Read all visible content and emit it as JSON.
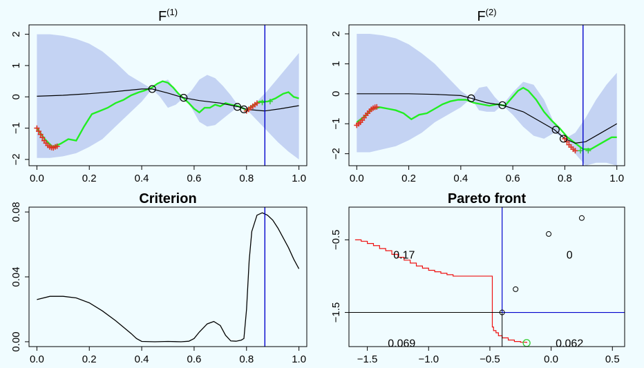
{
  "chart_data": [
    {
      "type": "line",
      "panel": "F1",
      "title_base": "F",
      "title_sup": "(1)",
      "xlim": [
        -0.03,
        1.03
      ],
      "ylim": [
        -2.2,
        2.3
      ],
      "xticks": [
        "0.0",
        "0.2",
        "0.4",
        "0.6",
        "0.8",
        "1.0"
      ],
      "xtick_values": [
        0,
        0.2,
        0.4,
        0.6,
        0.8,
        1.0
      ],
      "yticks": [
        "−2",
        "−1",
        "0",
        "1",
        "2"
      ],
      "ytick_values": [
        -2,
        -1,
        0,
        1,
        2
      ],
      "vline_x": 0.87,
      "band": {
        "x": [
          0.0,
          0.05,
          0.1,
          0.15,
          0.2,
          0.25,
          0.3,
          0.35,
          0.4,
          0.44,
          0.47,
          0.5,
          0.53,
          0.56,
          0.59,
          0.62,
          0.65,
          0.68,
          0.71,
          0.74,
          0.77,
          0.8,
          0.84,
          0.88,
          0.92,
          0.96,
          1.0
        ],
        "upper": [
          2.0,
          2.0,
          1.95,
          1.85,
          1.7,
          1.45,
          1.1,
          0.7,
          0.45,
          0.25,
          0.45,
          0.55,
          0.2,
          -0.03,
          0.2,
          0.55,
          0.7,
          0.6,
          0.35,
          0.05,
          -0.3,
          -0.35,
          -0.15,
          0.2,
          0.6,
          1.0,
          1.4
        ],
        "lower": [
          -1.95,
          -1.95,
          -1.9,
          -1.8,
          -1.6,
          -1.35,
          -0.95,
          -0.55,
          -0.15,
          0.25,
          0.0,
          -0.35,
          -0.25,
          -0.03,
          -0.35,
          -0.8,
          -0.95,
          -0.9,
          -0.7,
          -0.5,
          -0.3,
          -0.4,
          -0.75,
          -1.1,
          -1.45,
          -1.75,
          -2.0
        ]
      },
      "mean_line": {
        "x": [
          0.0,
          0.1,
          0.2,
          0.3,
          0.4,
          0.44,
          0.5,
          0.56,
          0.62,
          0.7,
          0.77,
          0.8,
          0.87,
          0.93,
          1.0
        ],
        "y": [
          0.02,
          0.05,
          0.1,
          0.17,
          0.25,
          0.25,
          0.12,
          -0.03,
          -0.12,
          -0.2,
          -0.32,
          -0.4,
          -0.45,
          -0.38,
          -0.28
        ]
      },
      "true_function": {
        "x": [
          0.0,
          0.03,
          0.06,
          0.09,
          0.12,
          0.15,
          0.18,
          0.21,
          0.24,
          0.27,
          0.3,
          0.33,
          0.36,
          0.39,
          0.41,
          0.44,
          0.46,
          0.48,
          0.5,
          0.52,
          0.54,
          0.56,
          0.58,
          0.6,
          0.62,
          0.64,
          0.66,
          0.68,
          0.7,
          0.72,
          0.74,
          0.77,
          0.8,
          0.82,
          0.85,
          0.88,
          0.91,
          0.94,
          0.96,
          0.98,
          1.0
        ],
        "y": [
          -1.0,
          -1.35,
          -1.6,
          -1.5,
          -1.35,
          -1.4,
          -0.95,
          -0.55,
          -0.45,
          -0.35,
          -0.2,
          -0.1,
          0.05,
          0.15,
          0.2,
          0.3,
          0.42,
          0.5,
          0.45,
          0.3,
          0.1,
          -0.05,
          -0.2,
          -0.38,
          -0.5,
          -0.35,
          -0.35,
          -0.25,
          -0.3,
          -0.2,
          -0.25,
          -0.3,
          -0.42,
          -0.3,
          -0.15,
          -0.15,
          -0.05,
          0.1,
          0.15,
          0.0,
          -0.05
        ]
      },
      "observations": {
        "x": [
          0.44,
          0.56,
          0.765,
          0.79
        ],
        "y": [
          0.25,
          -0.03,
          -0.32,
          -0.4
        ]
      },
      "red_crosses": {
        "x": [
          0.0,
          0.007,
          0.014,
          0.021,
          0.028,
          0.035,
          0.042,
          0.049,
          0.056,
          0.063,
          0.07,
          0.077,
          0.8,
          0.808,
          0.816,
          0.824,
          0.832,
          0.84
        ],
        "y": [
          -1.0,
          -1.1,
          -1.2,
          -1.3,
          -1.4,
          -1.48,
          -1.55,
          -1.6,
          -1.62,
          -1.63,
          -1.6,
          -1.58,
          -0.45,
          -0.4,
          -0.35,
          -0.3,
          -0.25,
          -0.2
        ]
      },
      "green_crosses": {
        "x": [
          0.86,
          0.89
        ],
        "y": [
          -0.18,
          -0.15
        ]
      }
    },
    {
      "type": "line",
      "panel": "F2",
      "title_base": "F",
      "title_sup": "(2)",
      "xlim": [
        -0.03,
        1.03
      ],
      "ylim": [
        -2.4,
        2.3
      ],
      "xticks": [
        "0.0",
        "0.2",
        "0.4",
        "0.6",
        "0.8",
        "1.0"
      ],
      "xtick_values": [
        0,
        0.2,
        0.4,
        0.6,
        0.8,
        1.0
      ],
      "yticks": [
        "−2",
        "−1",
        "0",
        "1",
        "2"
      ],
      "ytick_values": [
        -2,
        -1,
        0,
        1,
        2
      ],
      "vline_x": 0.87,
      "band": {
        "x": [
          0.0,
          0.05,
          0.1,
          0.15,
          0.2,
          0.25,
          0.3,
          0.35,
          0.4,
          0.44,
          0.47,
          0.5,
          0.53,
          0.56,
          0.6,
          0.64,
          0.68,
          0.72,
          0.76,
          0.8,
          0.84,
          0.88,
          0.92,
          0.96,
          1.0
        ],
        "upper": [
          2.0,
          2.0,
          1.95,
          1.85,
          1.65,
          1.35,
          1.0,
          0.55,
          0.1,
          -0.15,
          0.2,
          0.25,
          -0.1,
          -0.38,
          0.05,
          0.4,
          0.3,
          -0.2,
          -1.0,
          -1.5,
          -1.3,
          -0.8,
          -0.2,
          0.3,
          0.7
        ],
        "lower": [
          -1.95,
          -1.95,
          -1.85,
          -1.75,
          -1.55,
          -1.3,
          -0.95,
          -0.7,
          -0.45,
          -0.15,
          -0.55,
          -0.6,
          -0.6,
          -0.38,
          -0.7,
          -1.1,
          -1.4,
          -1.5,
          -1.3,
          -1.5,
          -2.0,
          -2.4,
          -2.3,
          -2.3,
          -2.4
        ]
      },
      "mean_line": {
        "x": [
          0.0,
          0.1,
          0.2,
          0.3,
          0.4,
          0.44,
          0.5,
          0.56,
          0.64,
          0.7,
          0.76,
          0.8,
          0.84,
          0.88,
          0.94,
          1.0
        ],
        "y": [
          0.0,
          0.0,
          0.0,
          -0.02,
          -0.06,
          -0.15,
          -0.3,
          -0.38,
          -0.6,
          -0.9,
          -1.2,
          -1.5,
          -1.65,
          -1.6,
          -1.3,
          -1.0
        ]
      },
      "true_function": {
        "x": [
          0.0,
          0.03,
          0.06,
          0.09,
          0.12,
          0.15,
          0.18,
          0.21,
          0.24,
          0.27,
          0.3,
          0.33,
          0.36,
          0.39,
          0.42,
          0.45,
          0.48,
          0.51,
          0.54,
          0.57,
          0.6,
          0.62,
          0.64,
          0.66,
          0.69,
          0.72,
          0.75,
          0.78,
          0.81,
          0.84,
          0.87,
          0.9,
          0.93,
          0.96,
          0.98,
          1.0
        ],
        "y": [
          -0.95,
          -0.75,
          -0.5,
          -0.45,
          -0.5,
          -0.55,
          -0.65,
          -0.85,
          -0.7,
          -0.65,
          -0.5,
          -0.35,
          -0.25,
          -0.2,
          -0.2,
          -0.3,
          -0.35,
          -0.4,
          -0.35,
          -0.4,
          -0.1,
          0.1,
          0.2,
          0.1,
          -0.2,
          -0.6,
          -0.9,
          -1.15,
          -1.45,
          -1.65,
          -1.85,
          -1.85,
          -1.7,
          -1.55,
          -1.45,
          -1.45
        ]
      },
      "observations": {
        "x": [
          0.44,
          0.56,
          0.765,
          0.795
        ],
        "y": [
          -0.15,
          -0.38,
          -1.2,
          -1.5
        ]
      },
      "red_crosses": {
        "x": [
          0.0,
          0.007,
          0.014,
          0.021,
          0.028,
          0.035,
          0.042,
          0.049,
          0.056,
          0.063,
          0.07,
          0.077,
          0.8,
          0.808,
          0.816,
          0.824,
          0.832,
          0.84
        ],
        "y": [
          -1.05,
          -1.0,
          -0.95,
          -0.88,
          -0.8,
          -0.72,
          -0.65,
          -0.58,
          -0.52,
          -0.48,
          -0.45,
          -0.44,
          -1.5,
          -1.6,
          -1.7,
          -1.78,
          -1.85,
          -1.9
        ]
      },
      "green_crosses": {
        "x": [
          0.86,
          0.89
        ],
        "y": [
          -1.9,
          -1.9
        ]
      }
    },
    {
      "type": "line",
      "panel": "criterion",
      "title": "Criterion",
      "xlim": [
        -0.03,
        1.03
      ],
      "ylim": [
        -0.003,
        0.083
      ],
      "xticks": [
        "0.0",
        "0.2",
        "0.4",
        "0.6",
        "0.8",
        "1.0"
      ],
      "xtick_values": [
        0,
        0.2,
        0.4,
        0.6,
        0.8,
        1.0
      ],
      "yticks": [
        "0.00",
        "0.04",
        "0.08"
      ],
      "ytick_values": [
        0.0,
        0.04,
        0.08
      ],
      "vline_x": 0.87,
      "line": {
        "x": [
          0.0,
          0.05,
          0.1,
          0.15,
          0.2,
          0.25,
          0.3,
          0.33,
          0.36,
          0.38,
          0.4,
          0.45,
          0.5,
          0.55,
          0.58,
          0.6,
          0.62,
          0.65,
          0.675,
          0.7,
          0.72,
          0.74,
          0.76,
          0.78,
          0.79,
          0.8,
          0.81,
          0.82,
          0.84,
          0.86,
          0.88,
          0.9,
          0.92,
          0.94,
          0.96,
          0.98,
          1.0
        ],
        "y": [
          0.026,
          0.028,
          0.028,
          0.027,
          0.024,
          0.019,
          0.013,
          0.009,
          0.005,
          0.002,
          0.0002,
          0.0,
          0.0002,
          0.0,
          0.0003,
          0.002,
          0.006,
          0.011,
          0.0125,
          0.01,
          0.004,
          0.0005,
          0.0003,
          0.001,
          0.002,
          0.02,
          0.05,
          0.068,
          0.078,
          0.0795,
          0.078,
          0.075,
          0.07,
          0.064,
          0.058,
          0.051,
          0.045
        ]
      }
    },
    {
      "type": "scatter",
      "panel": "pareto",
      "title": "Pareto front",
      "xlim": [
        -1.65,
        0.6
      ],
      "ylim": [
        -1.97,
        -0.05
      ],
      "xticks": [
        "−1.5",
        "−1.0",
        "−0.5",
        "0.0",
        "0.5"
      ],
      "xtick_values": [
        -1.5,
        -1.0,
        -0.5,
        0.0,
        0.5
      ],
      "yticks": [
        "−1.5",
        "−0.5"
      ],
      "ytick_values": [
        -1.5,
        -0.5
      ],
      "vline_x": -0.4,
      "hline_y": -1.5,
      "front": {
        "x": [
          -1.6,
          -1.55,
          -1.5,
          -1.45,
          -1.4,
          -1.35,
          -1.3,
          -1.25,
          -1.2,
          -1.15,
          -1.1,
          -1.05,
          -1.0,
          -0.95,
          -0.9,
          -0.85,
          -0.8,
          -0.7,
          -0.6,
          -0.5,
          -0.48,
          -0.47,
          -0.45,
          -0.43,
          -0.4,
          -0.35,
          -0.3,
          -0.25,
          -0.2
        ],
        "y": [
          -0.5,
          -0.52,
          -0.55,
          -0.58,
          -0.62,
          -0.65,
          -0.7,
          -0.74,
          -0.78,
          -0.82,
          -0.86,
          -0.89,
          -0.92,
          -0.94,
          -0.96,
          -0.98,
          -1.0,
          -1.0,
          -1.0,
          -1.0,
          -1.7,
          -1.75,
          -1.78,
          -1.82,
          -1.85,
          -1.88,
          -1.9,
          -1.91,
          -1.92
        ]
      },
      "points": {
        "x": [
          0.25,
          -0.02,
          -0.29,
          -0.4
        ],
        "y": [
          -0.2,
          -0.42,
          -1.18,
          -1.5
        ]
      },
      "green_point": {
        "x": -0.2,
        "y": -1.92
      },
      "labels": [
        {
          "text": "0.17",
          "x": -1.2,
          "y": -0.7
        },
        {
          "text": "0",
          "x": 0.15,
          "y": -0.7
        },
        {
          "text": "0.069",
          "x": -1.22,
          "y": -1.92
        },
        {
          "text": "0.062",
          "x": 0.15,
          "y": -1.92
        }
      ]
    }
  ],
  "colors": {
    "background": "#f0fcff",
    "band": "#c4d3f3",
    "mean": "#000000",
    "truth": "#22ee22",
    "cross_red": "#dd3322",
    "cross_green": "#33cc33",
    "vline": "#0000cc",
    "front": "#ee1111"
  }
}
